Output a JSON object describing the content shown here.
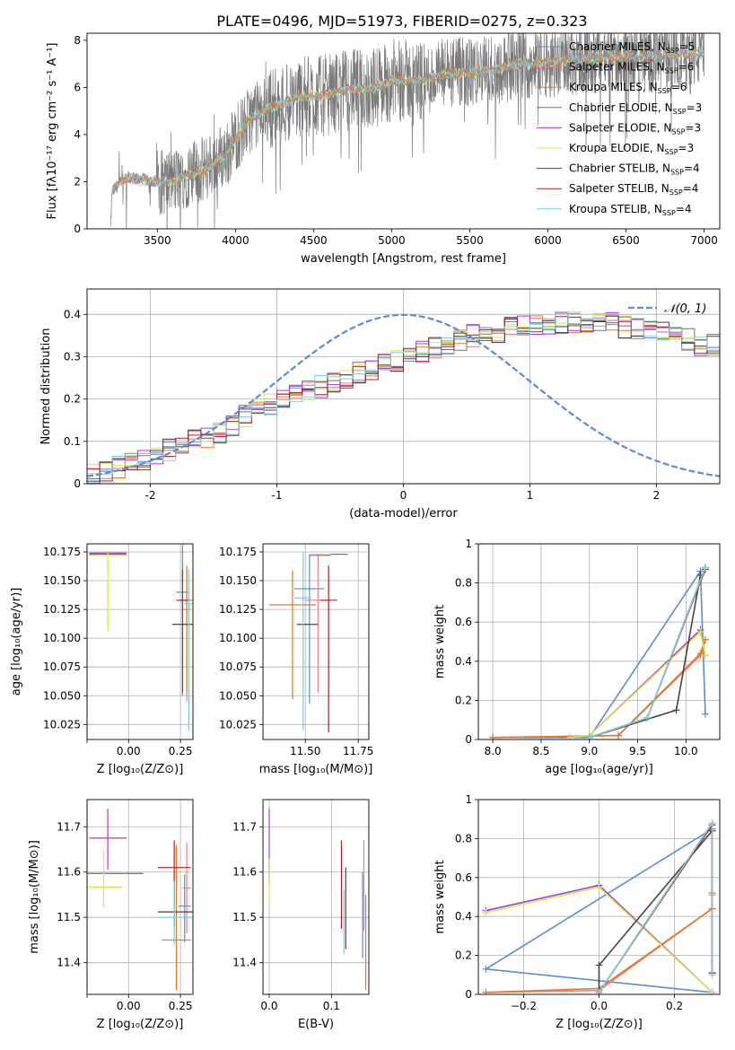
{
  "title": "PLATE=0496, MJD=51973, FIBERID=0275, z=0.323",
  "colors": {
    "chabrier_miles": "#5b8bd9",
    "salpeter_miles": "#f07f85",
    "kroupa_miles": "#e07b22",
    "chabrier_elodie": "#707070",
    "salpeter_elodie": "#a93ad8",
    "kroupa_elodie": "#d8e84a",
    "chabrier_stelib": "#444444",
    "salpeter_stelib": "#b22222",
    "kroupa_stelib": "#78d0e0",
    "gaussian": "#5b8bd9",
    "grid": "#b0b0b0"
  },
  "chart_data": [
    {
      "id": "spectrum",
      "type": "line",
      "xlabel": "wavelength [Angstrom, rest frame]",
      "ylabel": "Flux [fλ10⁻¹⁷ erg cm⁻² s⁻¹ A⁻¹]",
      "xlim": [
        3050,
        7100
      ],
      "ylim": [
        0,
        8.3
      ],
      "xticks": [
        3500,
        4000,
        4500,
        5000,
        5500,
        6000,
        6500,
        7000
      ],
      "yticks": [
        0,
        2,
        4,
        6,
        8
      ],
      "grid": false,
      "legend_position": "upper right",
      "legend": [
        {
          "label": "Chabrier MILES, N_SSP=5",
          "color": "chabrier_miles"
        },
        {
          "label": "Salpeter MILES, N_SSP=6",
          "color": "salpeter_miles"
        },
        {
          "label": "Kroupa MILES, N_SSP=6",
          "color": "kroupa_miles"
        },
        {
          "label": "Chabrier ELODIE, N_SSP=3",
          "color": "chabrier_elodie"
        },
        {
          "label": "Salpeter ELODIE, N_SSP=3",
          "color": "salpeter_elodie"
        },
        {
          "label": "Kroupa ELODIE, N_SSP=3",
          "color": "kroupa_elodie"
        },
        {
          "label": "Chabrier STELIB, N_SSP=4",
          "color": "chabrier_stelib"
        },
        {
          "label": "Salpeter STELIB, N_SSP=4",
          "color": "salpeter_stelib"
        },
        {
          "label": "Kroupa STELIB, N_SSP=4",
          "color": "kroupa_stelib"
        }
      ],
      "model_continuum": {
        "x": [
          3200,
          3210,
          3260,
          3300,
          3400,
          3500,
          3600,
          3700,
          3800,
          3900,
          3950,
          4000,
          4100,
          4200,
          4300,
          4400,
          4500,
          4600,
          4700,
          4800,
          4900,
          5000,
          5100,
          5200,
          5300,
          5400,
          5500,
          5600,
          5700,
          5800,
          5900,
          6000,
          6200,
          6400,
          6600,
          6800,
          7000
        ],
        "y": [
          0,
          1.6,
          1.9,
          2.2,
          2.1,
          2.0,
          2.0,
          2.3,
          2.5,
          3.0,
          3.2,
          3.8,
          4.7,
          5.1,
          5.3,
          5.6,
          5.6,
          5.7,
          5.9,
          5.9,
          6.0,
          6.3,
          6.3,
          6.3,
          6.5,
          6.6,
          6.6,
          6.7,
          6.8,
          7.0,
          7.0,
          7.1,
          7.2,
          7.3,
          7.3,
          7.4,
          7.5
        ]
      }
    },
    {
      "id": "residuals",
      "type": "line",
      "xlabel": "(data-model)/error",
      "ylabel": "Normed distribution",
      "xlim": [
        -2.5,
        2.5
      ],
      "ylim": [
        0,
        0.46
      ],
      "xticks": [
        -2,
        -1,
        0,
        1,
        2
      ],
      "yticks": [
        0.0,
        0.1,
        0.2,
        0.3,
        0.4
      ],
      "grid": true,
      "legend_position": "upper right",
      "gaussian_label": "𝒩(0, 1)",
      "bin_width": 0.1,
      "hist_base": [
        0.02,
        0.03,
        0.04,
        0.05,
        0.06,
        0.07,
        0.08,
        0.09,
        0.1,
        0.11,
        0.12,
        0.14,
        0.16,
        0.17,
        0.19,
        0.2,
        0.21,
        0.22,
        0.23,
        0.24,
        0.25,
        0.26,
        0.27,
        0.28,
        0.29,
        0.3,
        0.31,
        0.32,
        0.33,
        0.34,
        0.35,
        0.36,
        0.36,
        0.37,
        0.37,
        0.37,
        0.38,
        0.38,
        0.38,
        0.38,
        0.38,
        0.38,
        0.37,
        0.37,
        0.36,
        0.36,
        0.35,
        0.34,
        0.33,
        0.33,
        0.32,
        0.31,
        0.3,
        0.29,
        0.28,
        0.27,
        0.26,
        0.25,
        0.24,
        0.23,
        0.22,
        0.21,
        0.2,
        0.19,
        0.18,
        0.17,
        0.16,
        0.15,
        0.14,
        0.13,
        0.12,
        0.11,
        0.1,
        0.09,
        0.08,
        0.08,
        0.07,
        0.06,
        0.06,
        0.05,
        0.04,
        0.04,
        0.03,
        0.03,
        0.03,
        0.02,
        0.02,
        0.02,
        0.02,
        0.02,
        0.02,
        0.02,
        0.02,
        0.02,
        0.02,
        0.02,
        0.02,
        0.02,
        0.02,
        0.02
      ]
    },
    {
      "id": "age-vs-Z",
      "type": "scatter",
      "xlabel": "Z [log₁₀(Z/Z⊙)]",
      "ylabel": "age  [log₁₀(age/yr)]",
      "xlim": [
        -0.2,
        0.31
      ],
      "ylim": [
        10.012,
        10.182
      ],
      "xticks": [
        -0.2,
        0.0,
        0.25
      ],
      "xticklabels": [
        "",
        "0.00",
        "0.25"
      ],
      "yticks": [
        10.025,
        10.05,
        10.075,
        10.1,
        10.125,
        10.15,
        10.175
      ],
      "yticklabels": [
        "10.025",
        "10.050",
        "10.075",
        "10.100",
        "10.125",
        "10.150",
        "10.175"
      ],
      "grid": true,
      "points": [
        {
          "model": "chabrier_miles",
          "x": 0.26,
          "y": 10.14,
          "xerr": 0.03,
          "yerr": [
            0.09,
            0.06
          ]
        },
        {
          "model": "salpeter_miles",
          "x": 0.28,
          "y": 10.125,
          "xerr": 0.02,
          "yerr": [
            0.08,
            0.035
          ]
        },
        {
          "model": "kroupa_miles",
          "x": 0.28,
          "y": 10.133,
          "xerr": 0.03,
          "yerr": [
            0.08,
            0.03
          ]
        },
        {
          "model": "chabrier_elodie",
          "x": -0.1,
          "y": 10.173,
          "xerr": 0.09,
          "yerr": [
            0.0,
            0.0
          ]
        },
        {
          "model": "salpeter_elodie",
          "x": -0.1,
          "y": 10.174,
          "xerr": 0.09,
          "yerr": [
            0.0,
            0.0
          ]
        },
        {
          "model": "kroupa_elodie",
          "x": -0.1,
          "y": 10.172,
          "xerr": 0.09,
          "yerr": [
            0.066,
            0.004
          ]
        },
        {
          "model": "chabrier_stelib",
          "x": 0.26,
          "y": 10.112,
          "xerr": 0.05,
          "yerr": [
            0.0,
            0.0
          ]
        },
        {
          "model": "salpeter_stelib",
          "x": 0.26,
          "y": 10.133,
          "xerr": 0.03,
          "yerr": [
            0.08,
            0.027
          ]
        },
        {
          "model": "kroupa_stelib",
          "x": 0.29,
          "y": 10.13,
          "xerr": 0.02,
          "yerr": [
            0.11,
            0.03
          ]
        }
      ]
    },
    {
      "id": "age-vs-mass",
      "type": "scatter",
      "xlabel": "mass [log₁₀(M/M⊙)]",
      "xlim": [
        11.3,
        11.8
      ],
      "ylim": [
        10.012,
        10.182
      ],
      "xticks": [
        11.5,
        11.75
      ],
      "xticklabels": [
        "11.50",
        "11.75"
      ],
      "yticks": [
        10.025,
        10.05,
        10.075,
        10.1,
        10.125,
        10.15,
        10.175
      ],
      "yticklabels": [
        "10.025",
        "10.050",
        "10.075",
        "10.100",
        "10.125",
        "10.150",
        "10.175"
      ],
      "grid": true,
      "points": [
        {
          "model": "chabrier_miles",
          "x": 11.52,
          "y": 10.143,
          "xerr": 0.07,
          "yerr": [
            0.1,
            0.03
          ]
        },
        {
          "model": "salpeter_miles",
          "x": 11.56,
          "y": 10.133,
          "xerr": 0.06,
          "yerr": [
            0.08,
            0.04
          ]
        },
        {
          "model": "kroupa_miles",
          "x": 11.44,
          "y": 10.129,
          "xerr": 0.11,
          "yerr": [
            0.082,
            0.03
          ]
        },
        {
          "model": "chabrier_elodie",
          "x": 11.57,
          "y": 10.172,
          "xerr": 0.05,
          "yerr": [
            0.0,
            0.0
          ]
        },
        {
          "model": "salpeter_elodie",
          "x": 11.64,
          "y": 10.173,
          "xerr": 0.06,
          "yerr": [
            0.0,
            0.0
          ]
        },
        {
          "model": "kroupa_elodie",
          "x": 11.57,
          "y": 10.173,
          "xerr": 0.05,
          "yerr": [
            0.0,
            0.0
          ]
        },
        {
          "model": "chabrier_stelib",
          "x": 11.51,
          "y": 10.112,
          "xerr": 0.05,
          "yerr": [
            0.0,
            0.0
          ]
        },
        {
          "model": "salpeter_stelib",
          "x": 11.61,
          "y": 10.133,
          "xerr": 0.04,
          "yerr": [
            0.115,
            0.03
          ]
        },
        {
          "model": "kroupa_stelib",
          "x": 11.49,
          "y": 10.135,
          "xerr": 0.04,
          "yerr": [
            0.115,
            0.04
          ]
        }
      ]
    },
    {
      "id": "weight-vs-age",
      "type": "line",
      "xlabel": "age  [log₁₀(age/yr)]",
      "ylabel": "mass weight",
      "xlim": [
        7.85,
        10.35
      ],
      "ylim": [
        0,
        1.0
      ],
      "xticks": [
        8.0,
        8.5,
        9.0,
        9.5,
        10.0
      ],
      "xticklabels": [
        "8.0",
        "8.5",
        "9.0",
        "9.5",
        "10.0"
      ],
      "yticks": [
        0.0,
        0.2,
        0.4,
        0.6,
        0.8,
        1.0
      ],
      "grid": true,
      "series": [
        {
          "model": "chabrier_miles",
          "x": [
            8.0,
            9.0,
            10.15,
            10.2
          ],
          "y": [
            0.01,
            0.01,
            0.86,
            0.13
          ]
        },
        {
          "model": "salpeter_miles",
          "x": [
            8.0,
            9.3,
            10.15,
            10.2
          ],
          "y": [
            0.01,
            0.02,
            0.43,
            0.51
          ]
        },
        {
          "model": "kroupa_miles",
          "x": [
            8.0,
            9.3,
            10.15,
            10.2
          ],
          "y": [
            0.01,
            0.02,
            0.44,
            0.51
          ]
        },
        {
          "model": "chabrier_elodie",
          "x": [
            9.0,
            9.6,
            10.2
          ],
          "y": [
            0.01,
            0.11,
            0.88
          ]
        },
        {
          "model": "salpeter_elodie",
          "x": [
            8.8,
            9.0,
            10.15,
            10.2
          ],
          "y": [
            0.01,
            0.02,
            0.56,
            0.43
          ]
        },
        {
          "model": "kroupa_elodie",
          "x": [
            8.8,
            9.0,
            10.15,
            10.2
          ],
          "y": [
            0.01,
            0.02,
            0.55,
            0.43
          ]
        },
        {
          "model": "chabrier_stelib",
          "x": [
            9.0,
            9.9,
            10.15
          ],
          "y": [
            0.01,
            0.15,
            0.84
          ]
        },
        {
          "model": "salpeter_stelib",
          "x": [
            9.0,
            9.6,
            10.2
          ],
          "y": [
            0.01,
            0.11,
            0.87
          ]
        },
        {
          "model": "kroupa_stelib",
          "x": [
            9.0,
            9.6,
            10.2
          ],
          "y": [
            0.01,
            0.11,
            0.88
          ]
        }
      ]
    },
    {
      "id": "mass-vs-Z",
      "type": "scatter",
      "xlabel": "Z [log₁₀(Z/Z⊙)]",
      "ylabel": "mass [log₁₀(M/M⊙)]",
      "xlim": [
        -0.2,
        0.31
      ],
      "ylim": [
        11.33,
        11.76
      ],
      "xticks": [
        -0.2,
        0.0,
        0.25
      ],
      "xticklabels": [
        "",
        "0.00",
        "0.25"
      ],
      "yticks": [
        11.4,
        11.5,
        11.6,
        11.7
      ],
      "yticklabels": [
        "11.4",
        "11.5",
        "11.6",
        "11.7"
      ],
      "grid": true,
      "points": [
        {
          "model": "chabrier_miles",
          "x": 0.27,
          "y": 11.525,
          "xerr": 0.03,
          "yerr": [
            0.08,
            0.07
          ]
        },
        {
          "model": "salpeter_miles",
          "x": 0.28,
          "y": 11.565,
          "xerr": 0.02,
          "yerr": [
            0.1,
            0.1
          ]
        },
        {
          "model": "kroupa_miles",
          "x": 0.23,
          "y": 11.45,
          "xerr": 0.07,
          "yerr": [
            0.11,
            0.21
          ]
        },
        {
          "model": "chabrier_elodie",
          "x": -0.1,
          "y": 11.597,
          "xerr": 0.17,
          "yerr": [
            0.0,
            0.0
          ]
        },
        {
          "model": "salpeter_elodie",
          "x": -0.1,
          "y": 11.675,
          "xerr": 0.09,
          "yerr": [
            0.07,
            0.065
          ]
        },
        {
          "model": "kroupa_elodie",
          "x": -0.12,
          "y": 11.567,
          "xerr": 0.09,
          "yerr": [
            0.045,
            0.08
          ]
        },
        {
          "model": "chabrier_stelib",
          "x": 0.23,
          "y": 11.512,
          "xerr": 0.09,
          "yerr": [
            0.0,
            0.0
          ]
        },
        {
          "model": "salpeter_stelib",
          "x": 0.22,
          "y": 11.61,
          "xerr": 0.08,
          "yerr": [
            0.13,
            0.06
          ]
        },
        {
          "model": "kroupa_stelib",
          "x": 0.22,
          "y": 11.5,
          "xerr": 0.08,
          "yerr": [
            0.06,
            0.08
          ]
        }
      ]
    },
    {
      "id": "mass-vs-ebv",
      "type": "scatter",
      "xlabel": "E(B-V)",
      "xlim": [
        -0.01,
        0.16
      ],
      "ylim": [
        11.33,
        11.76
      ],
      "xticks": [
        0.0,
        0.1
      ],
      "xticklabels": [
        "0.0",
        "0.1"
      ],
      "yticks": [
        11.4,
        11.5,
        11.6,
        11.7
      ],
      "yticklabels": [
        "11.4",
        "11.5",
        "11.6",
        "11.7"
      ],
      "grid": true,
      "points": [
        {
          "model": "chabrier_miles",
          "x": 0.15,
          "y": 11.5,
          "xerr": 0.0,
          "yerr": [
            0.09,
            0.1
          ]
        },
        {
          "model": "salpeter_miles",
          "x": 0.152,
          "y": 11.57,
          "xerr": 0.0,
          "yerr": [
            0.1,
            0.1
          ]
        },
        {
          "model": "kroupa_miles",
          "x": 0.155,
          "y": 11.45,
          "xerr": 0.0,
          "yerr": [
            0.11,
            0.1
          ]
        },
        {
          "model": "chabrier_elodie",
          "x": 0.0,
          "y": 11.6,
          "xerr": 0.0,
          "yerr": [
            0.03,
            0.03
          ]
        },
        {
          "model": "salpeter_elodie",
          "x": 0.0,
          "y": 11.67,
          "xerr": 0.0,
          "yerr": [
            0.07,
            0.07
          ]
        },
        {
          "model": "kroupa_elodie",
          "x": 0.0,
          "y": 11.57,
          "xerr": 0.0,
          "yerr": [
            0.04,
            0.06
          ]
        },
        {
          "model": "chabrier_stelib",
          "x": 0.123,
          "y": 11.52,
          "xerr": 0.0,
          "yerr": [
            0.09,
            0.09
          ]
        },
        {
          "model": "salpeter_stelib",
          "x": 0.116,
          "y": 11.57,
          "xerr": 0.0,
          "yerr": [
            0.095,
            0.1
          ]
        },
        {
          "model": "kroupa_stelib",
          "x": 0.12,
          "y": 11.49,
          "xerr": 0.0,
          "yerr": [
            0.07,
            0.07
          ]
        }
      ]
    },
    {
      "id": "weight-vs-Z",
      "type": "line",
      "xlabel": "Z [log₁₀(Z/Z⊙)]",
      "ylabel": "mass weight",
      "xlim": [
        -0.32,
        0.32
      ],
      "ylim": [
        0,
        1.0
      ],
      "xticks": [
        -0.2,
        0.0,
        0.2
      ],
      "xticklabels": [
        "−0.2",
        "0.0",
        "0.2"
      ],
      "yticks": [
        0.0,
        0.2,
        0.4,
        0.6,
        0.8,
        1.0
      ],
      "grid": true,
      "series": [
        {
          "model": "chabrier_miles",
          "x": [
            0.3,
            -0.3,
            0.3,
            0.3
          ],
          "y": [
            0.01,
            0.13,
            0.85,
            0.11
          ]
        },
        {
          "model": "salpeter_miles",
          "x": [
            -0.3,
            0.0,
            0.3,
            0.3
          ],
          "y": [
            0.01,
            0.02,
            0.44,
            0.51
          ]
        },
        {
          "model": "kroupa_miles",
          "x": [
            -0.3,
            0.0,
            0.3,
            0.3
          ],
          "y": [
            0.01,
            0.03,
            0.44,
            0.52
          ]
        },
        {
          "model": "chabrier_elodie",
          "x": [
            0.0,
            0.3,
            0.3
          ],
          "y": [
            0.01,
            0.88,
            0.11
          ]
        },
        {
          "model": "salpeter_elodie",
          "x": [
            -0.3,
            0.0,
            0.3
          ],
          "y": [
            0.43,
            0.56,
            0.01
          ]
        },
        {
          "model": "kroupa_elodie",
          "x": [
            -0.3,
            0.0,
            0.3
          ],
          "y": [
            0.42,
            0.55,
            0.01
          ]
        },
        {
          "model": "chabrier_stelib",
          "x": [
            0.0,
            0.0,
            0.3
          ],
          "y": [
            0.01,
            0.15,
            0.84
          ]
        },
        {
          "model": "salpeter_stelib",
          "x": [
            0.0,
            0.3,
            0.3
          ],
          "y": [
            0.01,
            0.87,
            0.11
          ]
        },
        {
          "model": "kroupa_stelib",
          "x": [
            0.0,
            0.3,
            0.3
          ],
          "y": [
            0.01,
            0.88,
            0.1
          ]
        }
      ]
    }
  ]
}
